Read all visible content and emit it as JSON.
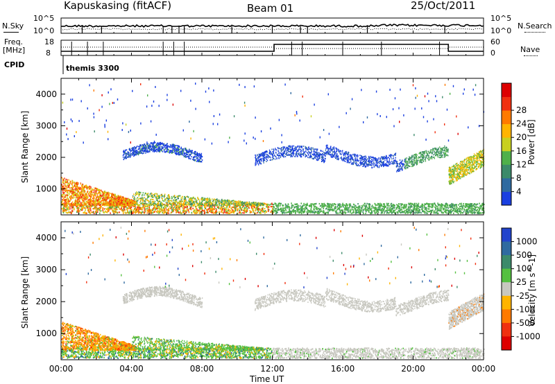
{
  "header": {
    "station": "Kapuskasing (fitACF)",
    "beam": "Beam 01",
    "date": "25/Oct/2011"
  },
  "top_panels": {
    "nsky_label": "N.Sky",
    "nsky_tick_top": "10^5",
    "nsky_tick_bottom": "10^0",
    "nsearch_label": "N.Search",
    "nsearch_tick_top": "10^5",
    "nsearch_tick_bottom": "10^0",
    "freq_label_line1": "Freq.",
    "freq_label_line2": "[MHz]",
    "freq_tick_top": "18",
    "freq_tick_bottom": "8",
    "nave_label": "Nave",
    "nave_tick_top": "60",
    "nave_tick_bottom": "0",
    "cpid_label": "CPID",
    "cpid_value": "themis 3300"
  },
  "axes": {
    "ylabel": "Slant Range [km]",
    "xlabel": "Time UT",
    "yticks": [
      "1000",
      "2000",
      "3000",
      "4000"
    ],
    "xticks": [
      "00:00",
      "04:00",
      "08:00",
      "12:00",
      "16:00",
      "20:00",
      "00:00"
    ]
  },
  "power_colorbar": {
    "label": "Power [dB]",
    "ticks": [
      "4",
      "8",
      "12",
      "16",
      "20",
      "24",
      "28"
    ],
    "colors": [
      "#1a3fe0",
      "#2f6aa0",
      "#3c8a6a",
      "#4fb04a",
      "#c8d020",
      "#ffb400",
      "#ff7a00",
      "#f03010",
      "#dd0000"
    ]
  },
  "velocity_colorbar": {
    "label": "Velocity [m s^-1]",
    "ticks": [
      "1000",
      "500",
      "100",
      "25",
      "-25",
      "-100",
      "-500",
      "-1000"
    ],
    "colors": [
      "#2244cc",
      "#2f6aa0",
      "#3c8a6a",
      "#55c040",
      "#c8c8c0",
      "#ffb400",
      "#ff7a00",
      "#f03010",
      "#dd0000"
    ]
  },
  "chart_data": {
    "type": "heatmap",
    "title": "Kapuskasing (fitACF)",
    "xlabel": "Time UT",
    "ylabel": "Slant Range [km]",
    "xlim": [
      "00:00",
      "24:00"
    ],
    "ylim": [
      180,
      4500
    ],
    "series": [
      {
        "name": "Power [dB]",
        "regions": [
          {
            "t_start": 0,
            "t_end": 24,
            "range_min": 200,
            "range_max": 500,
            "value": 16
          },
          {
            "t_start": 0,
            "t_end": 4,
            "range_min": 500,
            "range_max": 1300,
            "value": 22
          },
          {
            "t_start": 3.5,
            "t_end": 7.5,
            "range_min": 1800,
            "range_max": 2300,
            "value": 8
          },
          {
            "t_start": 7,
            "t_end": 8,
            "range_min": 2300,
            "range_max": 2600,
            "value": 4
          },
          {
            "t_start": 11,
            "t_end": 15,
            "range_min": 1600,
            "range_max": 2100,
            "value": 4
          },
          {
            "t_start": 15,
            "t_end": 19,
            "range_min": 1700,
            "range_max": 2400,
            "value": 8
          },
          {
            "t_start": 19,
            "t_end": 22,
            "range_min": 1600,
            "range_max": 2200,
            "value": 10
          },
          {
            "t_start": 22,
            "t_end": 24,
            "range_min": 1100,
            "range_max": 1900,
            "value": 20
          }
        ]
      },
      {
        "name": "Velocity [m s^-1]",
        "regions": [
          {
            "t_start": 0,
            "t_end": 12,
            "range_min": 200,
            "range_max": 800,
            "value": 100
          },
          {
            "t_start": 0,
            "t_end": 3,
            "range_min": 500,
            "range_max": 1300,
            "value": -100
          },
          {
            "t_start": 3.5,
            "t_end": 8,
            "range_min": 1800,
            "range_max": 2400,
            "value": 0
          },
          {
            "t_start": 12,
            "t_end": 24,
            "range_min": 200,
            "range_max": 500,
            "value": 0
          },
          {
            "t_start": 11,
            "t_end": 24,
            "range_min": 1300,
            "range_max": 2400,
            "value": 0
          }
        ]
      }
    ]
  }
}
